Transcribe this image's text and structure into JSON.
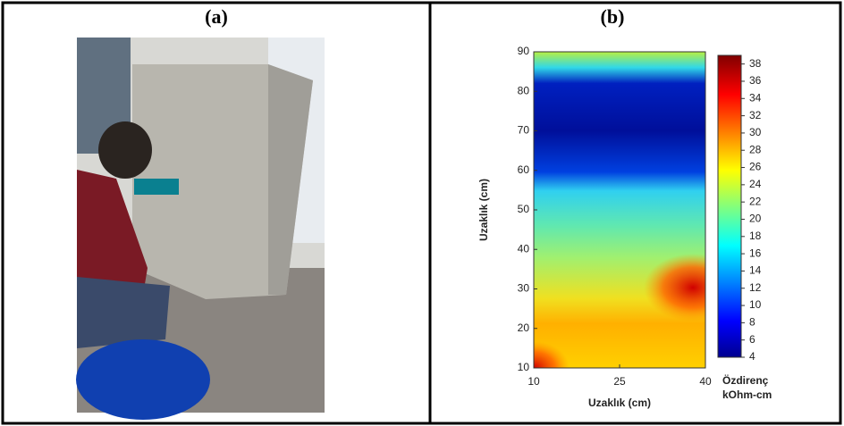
{
  "panels": [
    {
      "label": "(a)"
    },
    {
      "label": "(b)",
      "chart_data": {
        "type": "contour",
        "xlabel": "Uzaklık (cm)",
        "ylabel": "Uzaklık (cm)",
        "xlim": [
          10,
          40
        ],
        "xticks": [
          10,
          25,
          40
        ],
        "ylim": [
          10,
          90
        ],
        "yticks": [
          10,
          20,
          30,
          40,
          50,
          60,
          70,
          80,
          90
        ],
        "colorbar": {
          "title": "Özdirenç",
          "unit": "kOhm-cm",
          "lim": [
            4,
            39
          ],
          "ticks": [
            4,
            6,
            8,
            10,
            12,
            14,
            16,
            18,
            20,
            22,
            24,
            26,
            28,
            30,
            32,
            34,
            36,
            38
          ]
        }
      }
    }
  ]
}
